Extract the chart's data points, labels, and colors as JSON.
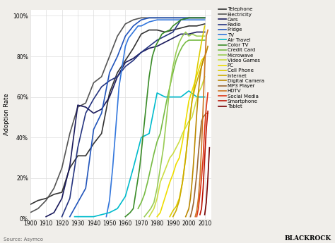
{
  "ylabel": "Adoption Rate",
  "source": "Source: Asymco",
  "brand": "BLACKROCK",
  "xlim": [
    1900,
    2014
  ],
  "ylim": [
    0,
    103
  ],
  "yticks": [
    0,
    20,
    40,
    60,
    80,
    100
  ],
  "ytick_labels": [
    "0%",
    "20%",
    "40%",
    "60%",
    "80%",
    "100%"
  ],
  "xticks": [
    1900,
    1910,
    1920,
    1930,
    1940,
    1950,
    1960,
    1970,
    1980,
    1990,
    2000,
    2010
  ],
  "background_color": "#f0eeea",
  "plot_background": "#ffffff",
  "series": [
    {
      "name": "Telephone",
      "color": "#333333",
      "lw": 1.2,
      "data": [
        [
          1900,
          7
        ],
        [
          1905,
          9
        ],
        [
          1910,
          10
        ],
        [
          1915,
          12
        ],
        [
          1920,
          13
        ],
        [
          1925,
          25
        ],
        [
          1930,
          31
        ],
        [
          1935,
          31
        ],
        [
          1940,
          37
        ],
        [
          1945,
          42
        ],
        [
          1950,
          62
        ],
        [
          1955,
          72
        ],
        [
          1960,
          78
        ],
        [
          1965,
          84
        ],
        [
          1970,
          91
        ],
        [
          1975,
          93
        ],
        [
          1980,
          93
        ],
        [
          1985,
          92
        ],
        [
          1990,
          93
        ],
        [
          1995,
          94
        ],
        [
          2000,
          95
        ],
        [
          2005,
          95
        ],
        [
          2010,
          96
        ]
      ]
    },
    {
      "name": "Electricity",
      "color": "#555555",
      "lw": 1.2,
      "data": [
        [
          1900,
          3
        ],
        [
          1905,
          5
        ],
        [
          1910,
          9
        ],
        [
          1915,
          15
        ],
        [
          1920,
          25
        ],
        [
          1925,
          42
        ],
        [
          1930,
          55
        ],
        [
          1935,
          57
        ],
        [
          1940,
          67
        ],
        [
          1945,
          70
        ],
        [
          1950,
          80
        ],
        [
          1955,
          90
        ],
        [
          1960,
          96
        ],
        [
          1965,
          98
        ],
        [
          1970,
          99
        ],
        [
          1975,
          99
        ],
        [
          1980,
          99
        ],
        [
          1985,
          99
        ],
        [
          1990,
          99
        ],
        [
          1995,
          99
        ],
        [
          2000,
          99
        ],
        [
          2005,
          99
        ],
        [
          2010,
          99
        ]
      ]
    },
    {
      "name": "Cars",
      "color": "#1a1a5c",
      "lw": 1.2,
      "data": [
        [
          1910,
          1
        ],
        [
          1915,
          3
        ],
        [
          1920,
          10
        ],
        [
          1925,
          26
        ],
        [
          1930,
          56
        ],
        [
          1935,
          55
        ],
        [
          1940,
          52
        ],
        [
          1945,
          54
        ],
        [
          1950,
          60
        ],
        [
          1955,
          70
        ],
        [
          1960,
          77
        ],
        [
          1965,
          79
        ],
        [
          1970,
          82
        ],
        [
          1975,
          84
        ],
        [
          1980,
          85
        ],
        [
          1985,
          87
        ],
        [
          1990,
          89
        ],
        [
          1995,
          91
        ],
        [
          2000,
          91
        ],
        [
          2005,
          92
        ],
        [
          2010,
          92
        ]
      ]
    },
    {
      "name": "Radio",
      "color": "#263580",
      "lw": 1.2,
      "data": [
        [
          1920,
          1
        ],
        [
          1925,
          10
        ],
        [
          1930,
          35
        ],
        [
          1935,
          52
        ],
        [
          1940,
          59
        ],
        [
          1945,
          65
        ],
        [
          1950,
          68
        ],
        [
          1955,
          70
        ],
        [
          1960,
          75
        ],
        [
          1965,
          78
        ],
        [
          1970,
          82
        ],
        [
          1975,
          85
        ],
        [
          1980,
          88
        ],
        [
          1985,
          90
        ],
        [
          1990,
          92
        ],
        [
          1995,
          98
        ],
        [
          2000,
          99
        ],
        [
          2005,
          99
        ],
        [
          2010,
          99
        ]
      ]
    },
    {
      "name": "Fridge",
      "color": "#2255bb",
      "lw": 1.2,
      "data": [
        [
          1925,
          1
        ],
        [
          1930,
          8
        ],
        [
          1935,
          15
        ],
        [
          1940,
          44
        ],
        [
          1945,
          52
        ],
        [
          1950,
          72
        ],
        [
          1955,
          80
        ],
        [
          1960,
          90
        ],
        [
          1965,
          95
        ],
        [
          1970,
          98
        ],
        [
          1975,
          99
        ],
        [
          1980,
          99
        ],
        [
          1985,
          99
        ],
        [
          1990,
          99
        ],
        [
          1995,
          99
        ],
        [
          2000,
          99
        ],
        [
          2005,
          99
        ],
        [
          2010,
          99
        ]
      ]
    },
    {
      "name": "TV",
      "color": "#3377dd",
      "lw": 1.2,
      "data": [
        [
          1948,
          1
        ],
        [
          1950,
          9
        ],
        [
          1952,
          25
        ],
        [
          1954,
          45
        ],
        [
          1956,
          65
        ],
        [
          1958,
          75
        ],
        [
          1960,
          85
        ],
        [
          1962,
          89
        ],
        [
          1964,
          91
        ],
        [
          1966,
          93
        ],
        [
          1968,
          95
        ],
        [
          1970,
          95
        ],
        [
          1975,
          97
        ],
        [
          1980,
          98
        ],
        [
          1985,
          98
        ],
        [
          1990,
          98
        ],
        [
          1995,
          98
        ],
        [
          2000,
          98
        ],
        [
          2005,
          98
        ],
        [
          2010,
          98
        ]
      ]
    },
    {
      "name": "Air Travel",
      "color": "#00bbcc",
      "lw": 1.2,
      "data": [
        [
          1928,
          1
        ],
        [
          1930,
          1
        ],
        [
          1935,
          1
        ],
        [
          1940,
          1
        ],
        [
          1945,
          2
        ],
        [
          1950,
          3
        ],
        [
          1955,
          5
        ],
        [
          1960,
          11
        ],
        [
          1965,
          25
        ],
        [
          1970,
          40
        ],
        [
          1975,
          42
        ],
        [
          1980,
          62
        ],
        [
          1985,
          60
        ],
        [
          1990,
          60
        ],
        [
          1995,
          60
        ],
        [
          2000,
          63
        ],
        [
          2005,
          60
        ],
        [
          2010,
          60
        ]
      ]
    },
    {
      "name": "Color TV",
      "color": "#3a8c28",
      "lw": 1.2,
      "data": [
        [
          1960,
          1
        ],
        [
          1963,
          3
        ],
        [
          1965,
          5
        ],
        [
          1967,
          15
        ],
        [
          1969,
          25
        ],
        [
          1971,
          40
        ],
        [
          1973,
          55
        ],
        [
          1975,
          70
        ],
        [
          1977,
          80
        ],
        [
          1979,
          85
        ],
        [
          1981,
          88
        ],
        [
          1983,
          91
        ],
        [
          1985,
          92
        ],
        [
          1988,
          93
        ],
        [
          1990,
          95
        ],
        [
          1995,
          98
        ],
        [
          2000,
          99
        ],
        [
          2005,
          99
        ],
        [
          2010,
          99
        ]
      ]
    },
    {
      "name": "Credit Card",
      "color": "#77bb44",
      "lw": 1.2,
      "data": [
        [
          1968,
          5
        ],
        [
          1970,
          8
        ],
        [
          1972,
          12
        ],
        [
          1974,
          18
        ],
        [
          1976,
          25
        ],
        [
          1978,
          32
        ],
        [
          1980,
          38
        ],
        [
          1982,
          42
        ],
        [
          1984,
          50
        ],
        [
          1986,
          58
        ],
        [
          1988,
          65
        ],
        [
          1990,
          72
        ],
        [
          1992,
          78
        ],
        [
          1994,
          82
        ],
        [
          1996,
          85
        ],
        [
          1998,
          87
        ],
        [
          2000,
          88
        ],
        [
          2002,
          88
        ],
        [
          2005,
          88
        ],
        [
          2008,
          88
        ],
        [
          2010,
          88
        ]
      ]
    },
    {
      "name": "Microwave",
      "color": "#99cc55",
      "lw": 1.2,
      "data": [
        [
          1972,
          1
        ],
        [
          1974,
          3
        ],
        [
          1976,
          5
        ],
        [
          1978,
          8
        ],
        [
          1980,
          15
        ],
        [
          1982,
          25
        ],
        [
          1984,
          35
        ],
        [
          1986,
          50
        ],
        [
          1988,
          65
        ],
        [
          1990,
          75
        ],
        [
          1992,
          82
        ],
        [
          1994,
          87
        ],
        [
          1996,
          90
        ],
        [
          1998,
          92
        ],
        [
          2000,
          90
        ],
        [
          2002,
          91
        ],
        [
          2005,
          90
        ],
        [
          2008,
          90
        ],
        [
          2010,
          90
        ]
      ]
    },
    {
      "name": "Video Games",
      "color": "#ccdd44",
      "lw": 1.2,
      "data": [
        [
          1975,
          1
        ],
        [
          1978,
          5
        ],
        [
          1980,
          10
        ],
        [
          1982,
          18
        ],
        [
          1984,
          22
        ],
        [
          1986,
          26
        ],
        [
          1988,
          30
        ],
        [
          1990,
          32
        ],
        [
          1992,
          35
        ],
        [
          1994,
          38
        ],
        [
          1996,
          42
        ],
        [
          1998,
          45
        ],
        [
          2000,
          48
        ],
        [
          2002,
          50
        ],
        [
          2004,
          56
        ],
        [
          2006,
          62
        ],
        [
          2008,
          65
        ],
        [
          2010,
          70
        ]
      ]
    },
    {
      "name": "PC",
      "color": "#eedd00",
      "lw": 1.2,
      "data": [
        [
          1980,
          1
        ],
        [
          1982,
          3
        ],
        [
          1984,
          8
        ],
        [
          1986,
          13
        ],
        [
          1988,
          18
        ],
        [
          1990,
          22
        ],
        [
          1992,
          27
        ],
        [
          1994,
          30
        ],
        [
          1996,
          38
        ],
        [
          1998,
          48
        ],
        [
          2000,
          58
        ],
        [
          2002,
          63
        ],
        [
          2004,
          68
        ],
        [
          2006,
          73
        ],
        [
          2008,
          78
        ],
        [
          2010,
          80
        ]
      ]
    },
    {
      "name": "Cell Phone",
      "color": "#ddcc00",
      "lw": 1.2,
      "data": [
        [
          1988,
          1
        ],
        [
          1990,
          4
        ],
        [
          1992,
          6
        ],
        [
          1994,
          10
        ],
        [
          1996,
          18
        ],
        [
          1998,
          30
        ],
        [
          2000,
          45
        ],
        [
          2002,
          58
        ],
        [
          2004,
          68
        ],
        [
          2006,
          78
        ],
        [
          2008,
          87
        ],
        [
          2010,
          95
        ]
      ]
    },
    {
      "name": "Internet",
      "color": "#ccaa00",
      "lw": 1.2,
      "data": [
        [
          1990,
          1
        ],
        [
          1992,
          4
        ],
        [
          1994,
          9
        ],
        [
          1996,
          18
        ],
        [
          1998,
          30
        ],
        [
          2000,
          45
        ],
        [
          2002,
          58
        ],
        [
          2004,
          65
        ],
        [
          2006,
          70
        ],
        [
          2008,
          75
        ],
        [
          2010,
          80
        ]
      ]
    },
    {
      "name": "Digital Camera",
      "color": "#bb8800",
      "lw": 1.2,
      "data": [
        [
          1998,
          1
        ],
        [
          2000,
          5
        ],
        [
          2001,
          10
        ],
        [
          2002,
          18
        ],
        [
          2003,
          28
        ],
        [
          2004,
          40
        ],
        [
          2005,
          52
        ],
        [
          2006,
          62
        ],
        [
          2007,
          70
        ],
        [
          2008,
          75
        ],
        [
          2009,
          78
        ],
        [
          2010,
          80
        ],
        [
          2011,
          82
        ],
        [
          2012,
          85
        ]
      ]
    },
    {
      "name": "MP3 Player",
      "color": "#996633",
      "lw": 1.2,
      "data": [
        [
          2001,
          1
        ],
        [
          2002,
          4
        ],
        [
          2003,
          8
        ],
        [
          2004,
          15
        ],
        [
          2005,
          22
        ],
        [
          2006,
          32
        ],
        [
          2007,
          40
        ],
        [
          2008,
          48
        ],
        [
          2009,
          50
        ],
        [
          2010,
          51
        ],
        [
          2011,
          52
        ],
        [
          2012,
          52
        ]
      ]
    },
    {
      "name": "HDTV",
      "color": "#cc7722",
      "lw": 1.2,
      "data": [
        [
          2004,
          1
        ],
        [
          2005,
          4
        ],
        [
          2006,
          10
        ],
        [
          2007,
          20
        ],
        [
          2008,
          35
        ],
        [
          2009,
          55
        ],
        [
          2010,
          75
        ],
        [
          2011,
          90
        ],
        [
          2012,
          93
        ]
      ]
    },
    {
      "name": "Social Media",
      "color": "#dd3311",
      "lw": 1.2,
      "data": [
        [
          2005,
          1
        ],
        [
          2006,
          5
        ],
        [
          2007,
          12
        ],
        [
          2008,
          20
        ],
        [
          2009,
          30
        ],
        [
          2010,
          45
        ],
        [
          2011,
          55
        ],
        [
          2012,
          62
        ]
      ]
    },
    {
      "name": "Smartphone",
      "color": "#bb1100",
      "lw": 1.2,
      "data": [
        [
          2007,
          2
        ],
        [
          2008,
          5
        ],
        [
          2009,
          15
        ],
        [
          2010,
          30
        ],
        [
          2011,
          44
        ],
        [
          2012,
          53
        ]
      ]
    },
    {
      "name": "Tablet",
      "color": "#770000",
      "lw": 1.2,
      "data": [
        [
          2010,
          2
        ],
        [
          2011,
          8
        ],
        [
          2012,
          20
        ],
        [
          2013,
          35
        ]
      ]
    }
  ]
}
